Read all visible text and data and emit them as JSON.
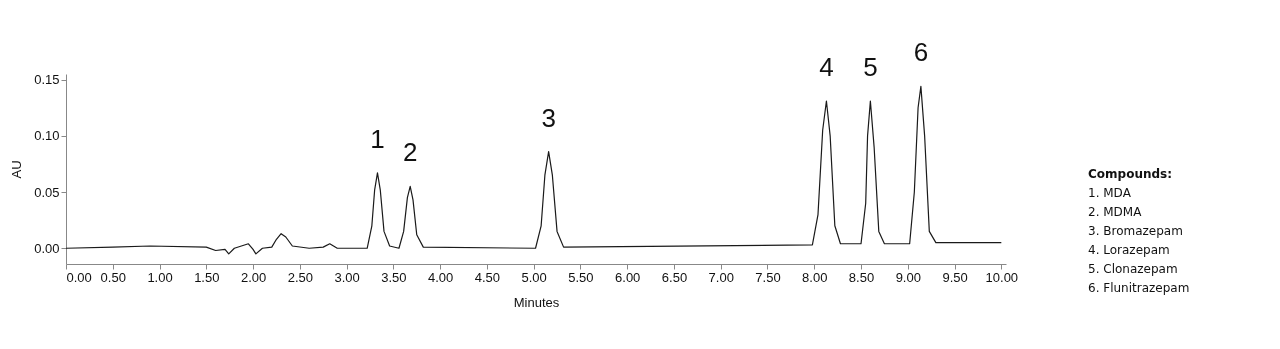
{
  "chart_data": {
    "type": "line",
    "xlabel": "Minutes",
    "ylabel": "AU",
    "xlim": [
      0,
      10.05
    ],
    "ylim": [
      -0.014,
      0.155
    ],
    "xticks": [
      {
        "value": 0,
        "label": "0.00"
      },
      {
        "value": 0.5,
        "label": "0.50"
      },
      {
        "value": 1,
        "label": "1.00"
      },
      {
        "value": 1.5,
        "label": "1.50"
      },
      {
        "value": 2,
        "label": "2.00"
      },
      {
        "value": 2.5,
        "label": "2.50"
      },
      {
        "value": 3,
        "label": "3.00"
      },
      {
        "value": 3.5,
        "label": "3.50"
      },
      {
        "value": 4,
        "label": "4.00"
      },
      {
        "value": 4.5,
        "label": "4.50"
      },
      {
        "value": 5,
        "label": "5.00"
      },
      {
        "value": 5.5,
        "label": "5.50"
      },
      {
        "value": 6,
        "label": "6.00"
      },
      {
        "value": 6.5,
        "label": "6.50"
      },
      {
        "value": 7,
        "label": "7.00"
      },
      {
        "value": 7.5,
        "label": "7.50"
      },
      {
        "value": 8,
        "label": "8.00"
      },
      {
        "value": 8.5,
        "label": "8.50"
      },
      {
        "value": 9,
        "label": "9.00"
      },
      {
        "value": 9.5,
        "label": "9.50"
      },
      {
        "value": 10,
        "label": "10.00"
      }
    ],
    "yticks": [
      {
        "value": 0,
        "label": "0.00"
      },
      {
        "value": 0.05,
        "label": "0.05"
      },
      {
        "value": 0.1,
        "label": "0.10"
      },
      {
        "value": 0.15,
        "label": "0.15"
      }
    ],
    "grid": false,
    "marker": "none",
    "line_style": "solid",
    "series": [
      {
        "color": "#1a1a1a",
        "x": [
          0.0,
          0.5,
          0.9,
          1.5,
          1.6,
          1.7,
          1.74,
          1.8,
          1.95,
          2.0,
          2.03,
          2.1,
          2.2,
          2.25,
          2.3,
          2.35,
          2.42,
          2.6,
          2.75,
          2.82,
          2.9,
          3.22,
          3.27,
          3.3,
          3.33,
          3.36,
          3.4,
          3.46,
          3.56,
          3.61,
          3.65,
          3.68,
          3.71,
          3.75,
          3.82,
          5.02,
          5.08,
          5.12,
          5.16,
          5.2,
          5.25,
          5.32,
          7.98,
          8.04,
          8.09,
          8.13,
          8.17,
          8.22,
          8.28,
          8.5,
          8.55,
          8.57,
          8.6,
          8.64,
          8.69,
          8.75,
          9.02,
          9.07,
          9.11,
          9.14,
          9.18,
          9.23,
          9.3,
          10.0
        ],
        "values": [
          0.0,
          0.001,
          0.002,
          0.001,
          -0.002,
          -0.001,
          -0.005,
          0.0,
          0.004,
          -0.001,
          -0.005,
          0.0,
          0.001,
          0.008,
          0.013,
          0.01,
          0.002,
          0.0,
          0.001,
          0.004,
          0.0,
          0.0,
          0.02,
          0.052,
          0.067,
          0.052,
          0.015,
          0.002,
          0.0,
          0.015,
          0.045,
          0.055,
          0.043,
          0.012,
          0.001,
          0.0,
          0.02,
          0.065,
          0.086,
          0.065,
          0.015,
          0.001,
          0.003,
          0.03,
          0.105,
          0.131,
          0.1,
          0.02,
          0.004,
          0.004,
          0.04,
          0.1,
          0.131,
          0.09,
          0.015,
          0.004,
          0.004,
          0.05,
          0.125,
          0.144,
          0.1,
          0.015,
          0.005,
          0.005
        ]
      }
    ],
    "annotations": [
      {
        "text": "1",
        "x": 3.33,
        "y": 0.067
      },
      {
        "text": "2",
        "x": 3.68,
        "y": 0.055
      },
      {
        "text": "3",
        "x": 5.16,
        "y": 0.086
      },
      {
        "text": "4",
        "x": 8.13,
        "y": 0.131
      },
      {
        "text": "5",
        "x": 8.6,
        "y": 0.131
      },
      {
        "text": "6",
        "x": 9.14,
        "y": 0.144
      },
      "Compounds:",
      "1. MDA",
      "2. MDMA",
      "3. Bromazepam",
      "4. Lorazepam",
      "5. Clonazepam",
      "6. Flunitrazepam"
    ]
  }
}
